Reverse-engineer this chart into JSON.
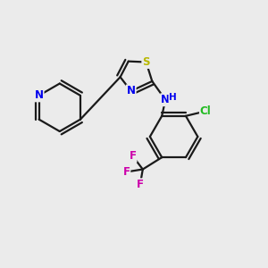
{
  "bg_color": "#ebebeb",
  "bond_color": "#1a1a1a",
  "bond_width": 1.6,
  "atom_colors": {
    "S": "#b8b800",
    "N": "#0000ee",
    "Cl": "#22bb22",
    "F": "#cc00aa",
    "H": "#0000ee",
    "C": "#1a1a1a"
  },
  "font_size_atom": 8.5,
  "font_size_small": 7.5
}
